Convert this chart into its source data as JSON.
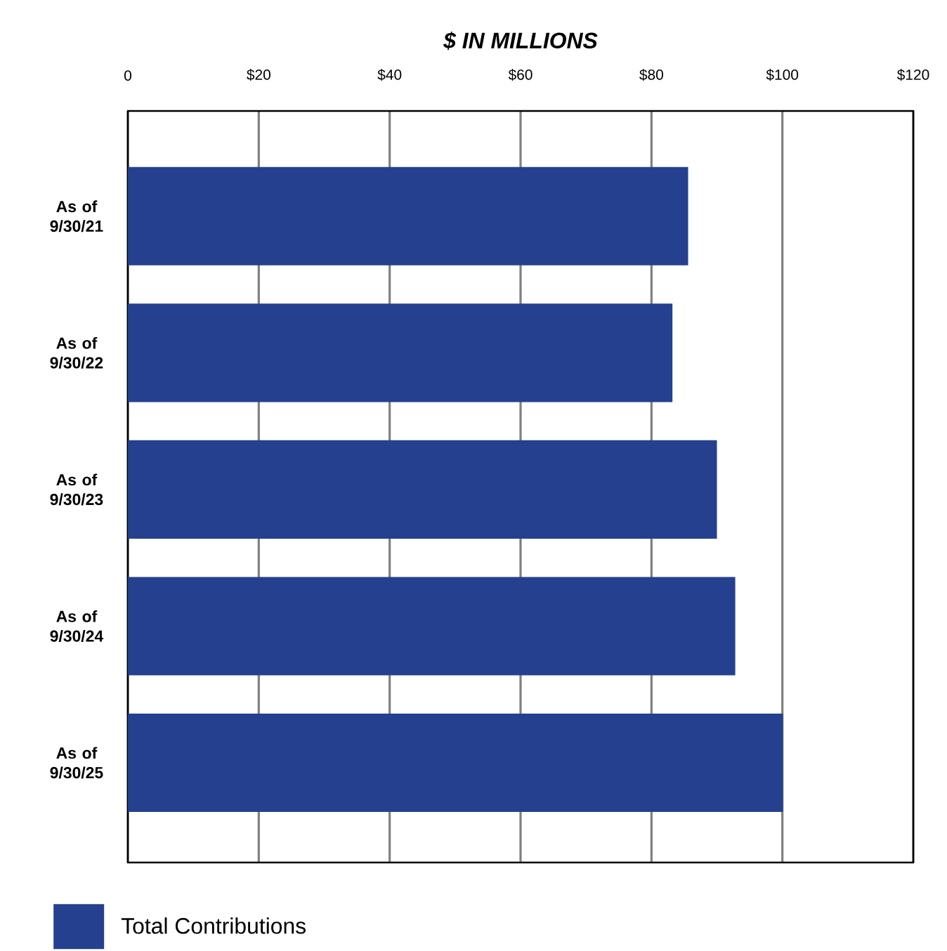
{
  "chart_data": {
    "type": "bar",
    "orientation": "horizontal",
    "title": "$ IN MILLIONS",
    "categories": [
      "As of 9/30/21",
      "As of 9/30/22",
      "As of 9/30/23",
      "As of 9/30/24",
      "As of 9/30/25"
    ],
    "series": [
      {
        "name": "Total Contributions",
        "color": "#25408f",
        "values": [
          85.6,
          83.2,
          90,
          92.8,
          100.1
        ]
      }
    ],
    "xlim": [
      0,
      120
    ],
    "xticks": [
      {
        "value": 0,
        "label": "0"
      },
      {
        "value": 20,
        "label": "$20"
      },
      {
        "value": 40,
        "label": "$40"
      },
      {
        "value": 60,
        "label": "$60"
      },
      {
        "value": 80,
        "label": "$80"
      },
      {
        "value": 100,
        "label": "$100"
      },
      {
        "value": 120,
        "label": "$120"
      }
    ],
    "grid": "x",
    "legend": "bottom left"
  }
}
